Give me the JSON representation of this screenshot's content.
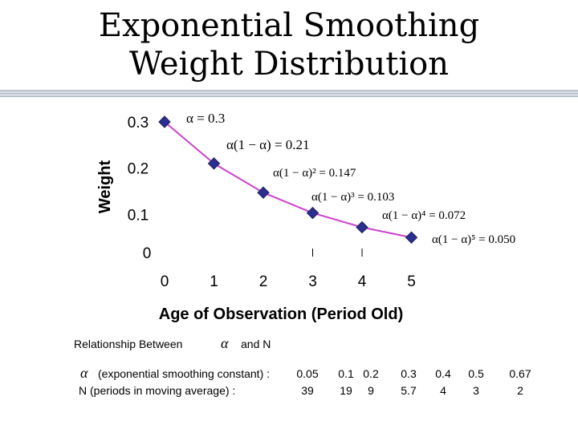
{
  "title_line1": "Exponential Smoothing",
  "title_line2": "Weight Distribution",
  "chart_data": {
    "type": "line",
    "title": "Exponential Smoothing Weight Distribution",
    "xlabel": "Age of Observation (Period Old)",
    "ylabel": "Weight",
    "x": [
      0,
      1,
      2,
      3,
      4,
      5
    ],
    "series": [
      {
        "name": "Weight",
        "values": [
          0.3,
          0.21,
          0.147,
          0.103,
          0.072,
          0.05
        ]
      }
    ],
    "xticks": [
      "0",
      "1",
      "2",
      "3",
      "4",
      "5"
    ],
    "yticks": [
      "0",
      "0.1",
      "0.2",
      "0.3"
    ],
    "ylim": [
      0,
      0.3
    ],
    "annotations": [
      "α = 0.3",
      "α(1 − α) = 0.21",
      "α(1 − α)² = 0.147",
      "α(1 − α)³ = 0.103",
      "α(1 − α)⁴ = 0.072",
      "α(1 − α)⁵ = 0.050"
    ],
    "colors": {
      "line": "#cc44cc",
      "marker": "#2b2f8f"
    }
  },
  "relationship": {
    "heading": "Relationship Between",
    "alpha_symbol": "α",
    "and_n": "and N",
    "row1_label": "(exponential smoothing constant) :",
    "row2_label": "N  (periods in moving average) :",
    "alpha_values": [
      "0.05",
      "0.1",
      "0.2",
      "0.3",
      "0.4",
      "0.5",
      "0.67"
    ],
    "n_values": [
      "39",
      "19",
      "9",
      "5.7",
      "4",
      "3",
      "2"
    ]
  }
}
